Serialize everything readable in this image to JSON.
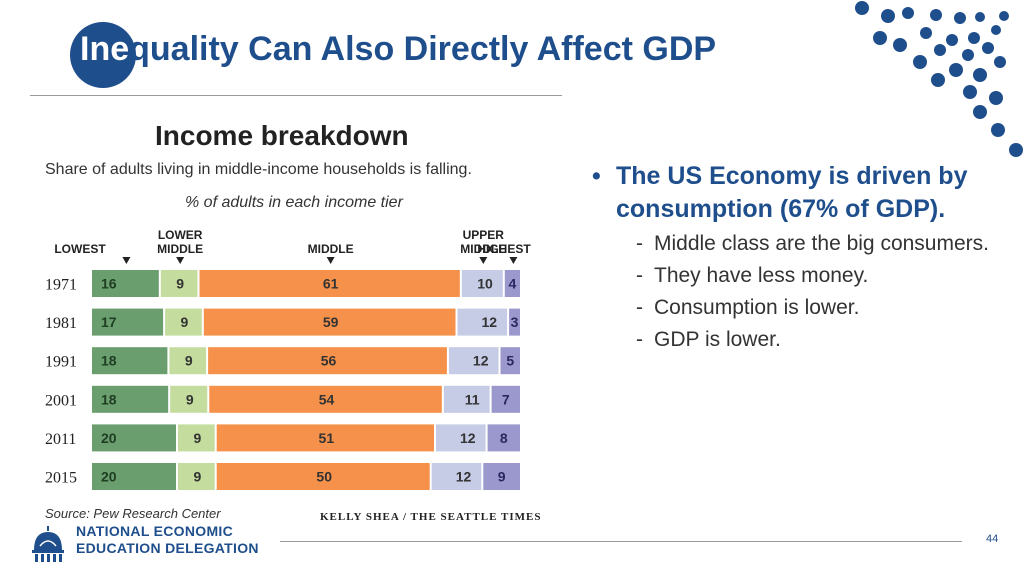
{
  "slide": {
    "title_highlight": "Ine",
    "title_rest": "quality Can Also Directly Affect GDP",
    "page_number": "44"
  },
  "bullets": {
    "main": "The US Economy is driven by consumption (67% of GDP).",
    "subs": [
      "Middle class are the big consumers.",
      "They have less money.",
      "Consumption is lower.",
      "GDP is lower."
    ]
  },
  "logo": {
    "line1": "NATIONAL ECONOMIC",
    "line2": "EDUCATION DELEGATION"
  },
  "chart_data": {
    "type": "bar",
    "orientation": "horizontal-stacked-100",
    "title": "Income breakdown",
    "subtitle": "Share of adults living in middle-income households is falling.",
    "axis_note": "% of adults in each income tier",
    "categories": [
      "1971",
      "1981",
      "1991",
      "2001",
      "2011",
      "2015"
    ],
    "series": [
      {
        "name": "LOWEST",
        "name_lines": [
          "LOWEST"
        ],
        "color": "#6a9e6e",
        "values": [
          16,
          17,
          18,
          18,
          20,
          20
        ]
      },
      {
        "name": "LOWER MIDDLE",
        "name_lines": [
          "LOWER",
          "MIDDLE"
        ],
        "color": "#c4dc9e",
        "values": [
          9,
          9,
          9,
          9,
          9,
          9
        ]
      },
      {
        "name": "MIDDLE",
        "name_lines": [
          "MIDDLE"
        ],
        "color": "#f5914a",
        "values": [
          61,
          59,
          56,
          54,
          51,
          50
        ]
      },
      {
        "name": "UPPER MIDDLE",
        "name_lines": [
          "UPPER",
          "MIDDLE"
        ],
        "color": "#c6cbe6",
        "values": [
          10,
          12,
          12,
          11,
          12,
          12
        ]
      },
      {
        "name": "HIGHEST",
        "name_lines": [
          "HIGHEST"
        ],
        "color": "#9a98cc",
        "values": [
          4,
          3,
          5,
          7,
          8,
          9
        ]
      }
    ],
    "source": "Source: Pew Research Center",
    "credit": "KELLY SHEA / THE SEATTLE TIMES"
  }
}
